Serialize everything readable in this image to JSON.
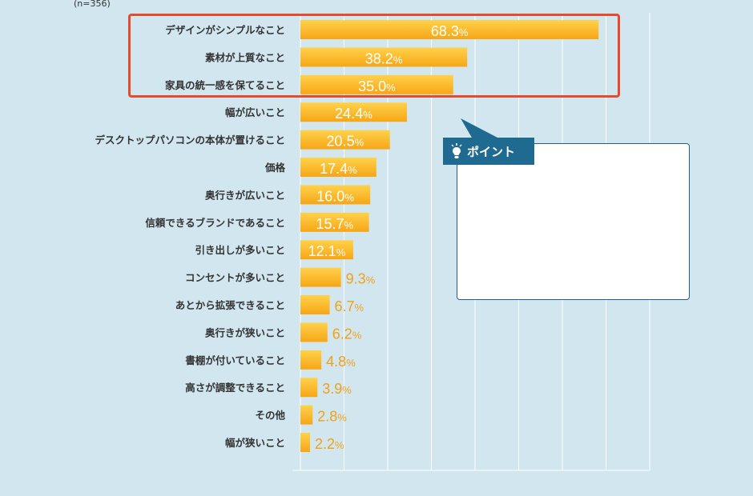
{
  "sample_note": "(n=356)",
  "point_label": "ポイント",
  "colors": {
    "background": "#d2e6ef",
    "bar_top": "#ffd24a",
    "bar_bottom": "#f6a617",
    "highlight_border": "#e84a2c",
    "point_tab": "#1e6a90",
    "label_outside": "#f0a118"
  },
  "icons": {
    "point": "lightbulb-icon"
  },
  "chart_data": {
    "type": "bar",
    "orientation": "horizontal",
    "unit": "%",
    "xlim": [
      0,
      80
    ],
    "grid": true,
    "categories": [
      "デザインがシンプルなこと",
      "素材が上質なこと",
      "家具の統一感を保てること",
      "幅が広いこと",
      "デスクトップパソコンの本体が置けること",
      "価格",
      "奥行きが広いこと",
      "信頼できるブランドであること",
      "引き出しが多いこと",
      "コンセントが多いこと",
      "あとから拡張できること",
      "奥行きが狭いこと",
      "書棚が付いていること",
      "高さが調整できること",
      "その他",
      "幅が狭いこと"
    ],
    "values": [
      68.3,
      38.2,
      35.0,
      24.4,
      20.5,
      17.4,
      16.0,
      15.7,
      12.1,
      9.3,
      6.7,
      6.2,
      4.8,
      3.9,
      2.8,
      2.2
    ],
    "value_labels": [
      "68.3%",
      "38.2%",
      "35.0%",
      "24.4%",
      "20.5%",
      "17.4%",
      "16.0%",
      "15.7%",
      "12.1%",
      "9.3%",
      "6.7%",
      "6.2%",
      "4.8%",
      "3.9%",
      "2.8%",
      "2.2%"
    ],
    "highlighted_top_n": 3
  }
}
